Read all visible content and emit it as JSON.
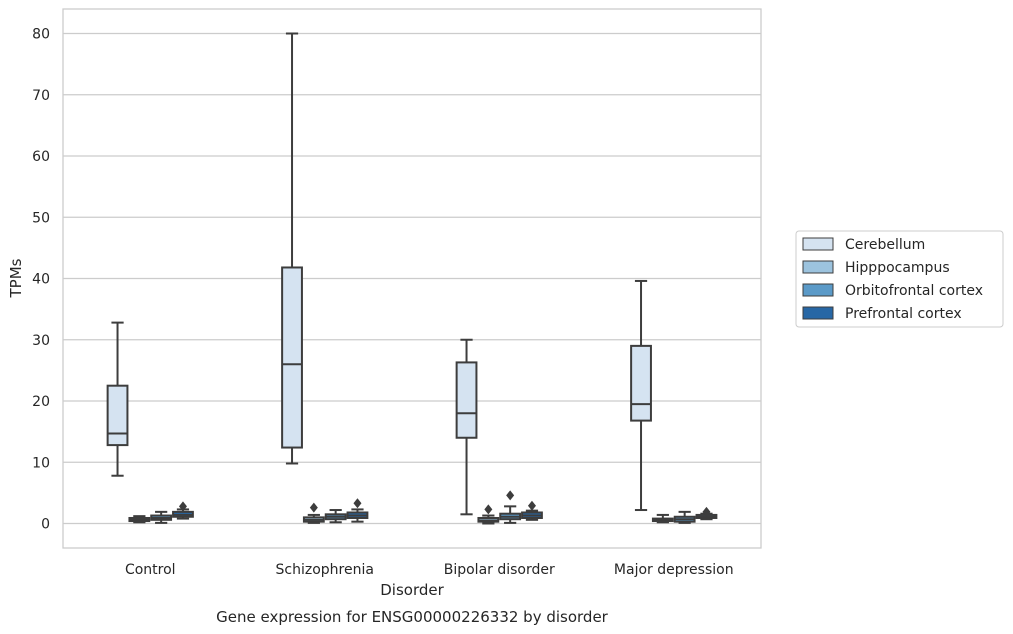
{
  "chart_data": {
    "type": "box",
    "title": "Gene expression for ENSG00000226332 by disorder",
    "xlabel": "Disorder",
    "ylabel": "TPMs",
    "ylim": [
      -4,
      84
    ],
    "yticks": [
      0,
      10,
      20,
      30,
      40,
      50,
      60,
      70,
      80
    ],
    "grid": true,
    "legend_position": "right",
    "categories": [
      "Control",
      "Schizophrenia",
      "Bipolar disorder",
      "Major depression"
    ],
    "series": [
      {
        "name": "Cerebellum",
        "color": "#d5e3f1",
        "boxes": [
          {
            "whislo": 7.8,
            "q1": 12.8,
            "med": 14.7,
            "q3": 22.5,
            "whishi": 32.8,
            "fliers": []
          },
          {
            "whislo": 9.8,
            "q1": 12.4,
            "med": 26.0,
            "q3": 41.8,
            "whishi": 80.0,
            "fliers": []
          },
          {
            "whislo": 1.5,
            "q1": 14.0,
            "med": 18.0,
            "q3": 26.3,
            "whishi": 30.0,
            "fliers": []
          },
          {
            "whislo": 2.2,
            "q1": 16.8,
            "med": 19.5,
            "q3": 29.0,
            "whishi": 39.6,
            "fliers": []
          }
        ]
      },
      {
        "name": "Hipppocampus",
        "color": "#9cc3de",
        "boxes": [
          {
            "whislo": 0.2,
            "q1": 0.4,
            "med": 0.6,
            "q3": 0.9,
            "whishi": 1.2,
            "fliers": []
          },
          {
            "whislo": 0.1,
            "q1": 0.3,
            "med": 0.6,
            "q3": 1.0,
            "whishi": 1.4,
            "fliers": [
              2.6
            ]
          },
          {
            "whislo": 0.0,
            "q1": 0.3,
            "med": 0.5,
            "q3": 0.9,
            "whishi": 1.3,
            "fliers": [
              2.3
            ]
          },
          {
            "whislo": 0.2,
            "q1": 0.4,
            "med": 0.6,
            "q3": 0.8,
            "whishi": 1.4,
            "fliers": []
          }
        ]
      },
      {
        "name": "Orbitofrontal cortex",
        "color": "#5b9ac8",
        "boxes": [
          {
            "whislo": 0.1,
            "q1": 0.6,
            "med": 0.9,
            "q3": 1.3,
            "whishi": 1.9,
            "fliers": []
          },
          {
            "whislo": 0.2,
            "q1": 0.7,
            "med": 1.1,
            "q3": 1.5,
            "whishi": 2.2,
            "fliers": []
          },
          {
            "whislo": 0.1,
            "q1": 0.7,
            "med": 1.1,
            "q3": 1.6,
            "whishi": 2.8,
            "fliers": [
              4.6
            ]
          },
          {
            "whislo": 0.1,
            "q1": 0.3,
            "med": 0.7,
            "q3": 1.1,
            "whishi": 1.9,
            "fliers": []
          }
        ]
      },
      {
        "name": "Prefrontal cortex",
        "color": "#2767a5",
        "boxes": [
          {
            "whislo": 0.8,
            "q1": 1.1,
            "med": 1.4,
            "q3": 1.9,
            "whishi": 2.3,
            "fliers": [
              2.8
            ]
          },
          {
            "whislo": 0.3,
            "q1": 0.9,
            "med": 1.3,
            "q3": 1.8,
            "whishi": 2.3,
            "fliers": [
              3.3
            ]
          },
          {
            "whislo": 0.6,
            "q1": 0.9,
            "med": 1.3,
            "q3": 1.8,
            "whishi": 2.1,
            "fliers": [
              2.9
            ]
          },
          {
            "whislo": 0.7,
            "q1": 0.9,
            "med": 1.1,
            "q3": 1.4,
            "whishi": 1.6,
            "fliers": [
              1.9
            ]
          }
        ]
      }
    ]
  }
}
